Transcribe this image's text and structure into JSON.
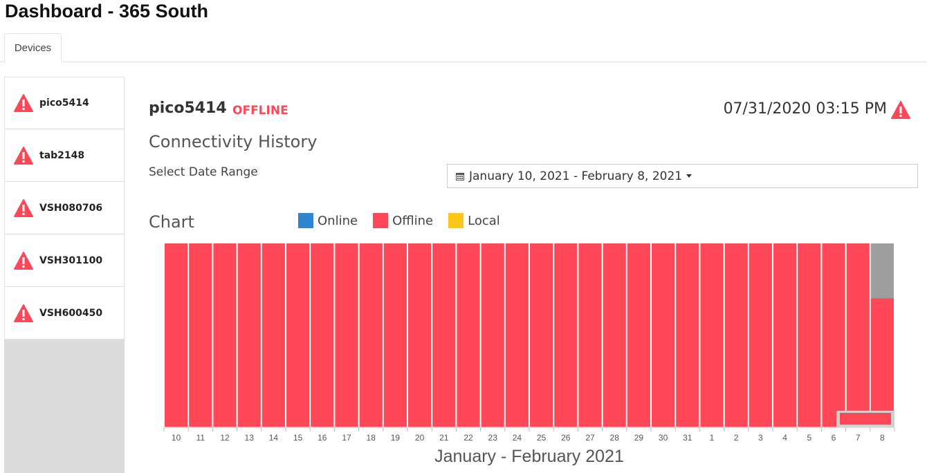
{
  "page": {
    "title": "Dashboard - 365 South"
  },
  "tabs": [
    {
      "label": "Devices",
      "active": true
    }
  ],
  "sidebar": {
    "items": [
      {
        "label": "pico5414",
        "icon": "warning-icon"
      },
      {
        "label": "tab2148",
        "icon": "warning-icon"
      },
      {
        "label": "VSH080706",
        "icon": "warning-icon"
      },
      {
        "label": "VSH301100",
        "icon": "warning-icon"
      },
      {
        "label": "VSH600450",
        "icon": "warning-icon"
      }
    ]
  },
  "detail": {
    "device_name": "pico5414",
    "status": "OFFLINE",
    "timestamp": "07/31/2020 03:15 PM",
    "section_title": "Connectivity History",
    "date_range_label": "Select Date Range",
    "date_range_value": "January 10, 2021 - February 8, 2021"
  },
  "colors": {
    "online": "#2e86d1",
    "offline": "#ff4757",
    "local": "#ffc61a",
    "nodata": "#9e9e9e",
    "warning": "#ff4757"
  },
  "chart_data": {
    "type": "bar",
    "title": "Chart",
    "stacked": true,
    "categories": [
      "10",
      "11",
      "12",
      "13",
      "14",
      "15",
      "16",
      "17",
      "18",
      "19",
      "20",
      "21",
      "22",
      "23",
      "24",
      "25",
      "26",
      "27",
      "28",
      "29",
      "30",
      "31",
      "1",
      "2",
      "3",
      "4",
      "5",
      "6",
      "7",
      "8"
    ],
    "xlabel": "January - February 2021",
    "ylim": [
      0,
      1
    ],
    "legend": [
      "Online",
      "Offline",
      "Local"
    ],
    "series": [
      {
        "name": "Online",
        "values": [
          0,
          0,
          0,
          0,
          0,
          0,
          0,
          0,
          0,
          0,
          0,
          0,
          0,
          0,
          0,
          0,
          0,
          0,
          0,
          0,
          0,
          0,
          0,
          0,
          0,
          0,
          0,
          0,
          0,
          0
        ]
      },
      {
        "name": "Offline",
        "values": [
          1,
          1,
          1,
          1,
          1,
          1,
          1,
          1,
          1,
          1,
          1,
          1,
          1,
          1,
          1,
          1,
          1,
          1,
          1,
          1,
          1,
          1,
          1,
          1,
          1,
          1,
          1,
          1,
          1,
          0.7
        ]
      },
      {
        "name": "Local",
        "values": [
          0,
          0,
          0,
          0,
          0,
          0,
          0,
          0,
          0,
          0,
          0,
          0,
          0,
          0,
          0,
          0,
          0,
          0,
          0,
          0,
          0,
          0,
          0,
          0,
          0,
          0,
          0,
          0,
          0,
          0
        ]
      }
    ],
    "grid": false
  }
}
